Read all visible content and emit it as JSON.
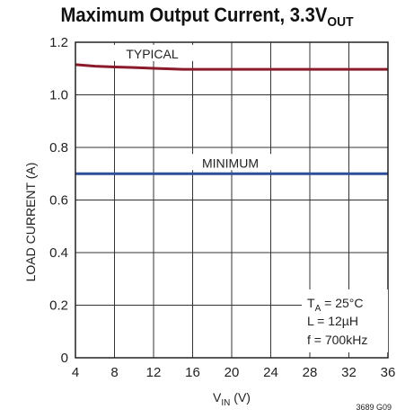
{
  "chart_data": {
    "type": "line",
    "title_main": "Maximum Output Current, 3.3V",
    "title_sub": "OUT",
    "xlabel_main": "V",
    "xlabel_sub": "IN",
    "xlabel_unit": " (V)",
    "ylabel": "LOAD CURRENT (A)",
    "xlim": [
      4,
      36
    ],
    "ylim": [
      0,
      1.2
    ],
    "xticks": [
      "4",
      "8",
      "12",
      "16",
      "20",
      "24",
      "28",
      "32",
      "36"
    ],
    "yticks": [
      "0",
      "0.2",
      "0.4",
      "0.6",
      "0.8",
      "1.0",
      "1.2"
    ],
    "grid": true,
    "series": [
      {
        "name": "TYPICAL",
        "color": "#8b1a2b",
        "x": [
          4,
          6,
          8,
          10,
          12,
          14,
          15,
          16,
          20,
          24,
          28,
          32,
          36
        ],
        "y": [
          1.115,
          1.109,
          1.106,
          1.104,
          1.101,
          1.098,
          1.097,
          1.097,
          1.097,
          1.097,
          1.097,
          1.097,
          1.097
        ]
      },
      {
        "name": "MINIMUM",
        "color": "#2e4d9b",
        "x": [
          4,
          36
        ],
        "y": [
          0.7,
          0.7
        ]
      }
    ],
    "conditions": {
      "ta_main": "T",
      "ta_sub": "A",
      "ta_rest": " = 25°C",
      "l": "L = 12µH",
      "f": "f = 700kHz"
    },
    "figure_code": "3689 G09"
  }
}
